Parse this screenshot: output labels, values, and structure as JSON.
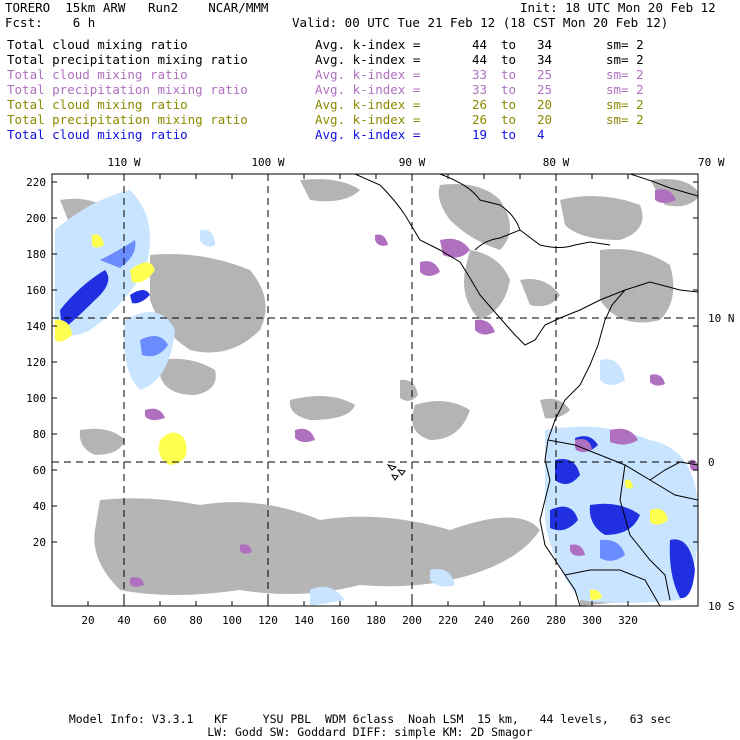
{
  "header": {
    "model": "TORERO  15km ARW   Run2    NCAR/MMM",
    "init": "Init: 18 UTC Mon 20 Feb 12",
    "fcst": "Fcst:    6 h",
    "valid": "Valid: 00 UTC Tue 21 Feb 12 (18 CST Mon 20 Feb 12)"
  },
  "legend": [
    {
      "name": "Total cloud mixing ratio",
      "kidx": "Avg. k-index =",
      "from": "44",
      "to_word": "to",
      "to": "34",
      "sm": "sm= 2",
      "color": "#000000"
    },
    {
      "name": "Total precipitation mixing ratio",
      "kidx": "Avg. k-index =",
      "from": "44",
      "to_word": "to",
      "to": "34",
      "sm": "sm= 2",
      "color": "#000000"
    },
    {
      "name": "Total cloud mixing ratio",
      "kidx": "Avg. k-index =",
      "from": "33",
      "to_word": "to",
      "to": "25",
      "sm": "sm= 2",
      "color": "#b070c0"
    },
    {
      "name": "Total precipitation mixing ratio",
      "kidx": "Avg. k-index =",
      "from": "33",
      "to_word": "to",
      "to": "25",
      "sm": "sm= 2",
      "color": "#b070c0"
    },
    {
      "name": "Total cloud mixing ratio",
      "kidx": "Avg. k-index =",
      "from": "26",
      "to_word": "to",
      "to": "20",
      "sm": "sm= 2",
      "color": "#8a8a00"
    },
    {
      "name": "Total precipitation mixing ratio",
      "kidx": "Avg. k-index =",
      "from": "26",
      "to_word": "to",
      "to": "20",
      "sm": "sm= 2",
      "color": "#8a8a00"
    },
    {
      "name": "Total cloud mixing ratio",
      "kidx": "Avg. k-index =",
      "from": "19",
      "to_word": "to",
      "to": "4",
      "sm": "",
      "color": "#1010e0"
    }
  ],
  "map": {
    "top_lon_labels": [
      "110 W",
      "100 W",
      "90 W",
      "80 W",
      "70 W"
    ],
    "right_lat_labels": [
      "10 N",
      "0",
      "10 S"
    ],
    "x_ticks": [
      "20",
      "40",
      "60",
      "80",
      "100",
      "120",
      "140",
      "160",
      "180",
      "200",
      "220",
      "240",
      "260",
      "280",
      "300",
      "320"
    ],
    "y_ticks": [
      "220",
      "200",
      "180",
      "160",
      "140",
      "120",
      "100",
      "80",
      "60",
      "40",
      "20"
    ],
    "colors": {
      "gray": "#a8a8a8",
      "purple": "#b070c0",
      "yellow": "#ffff50",
      "lightblue": "#c8e4ff",
      "blue": "#2030e0",
      "midblue": "#6a8cff"
    }
  },
  "footer": {
    "line1": "Model Info: V3.3.1   KF     YSU PBL  WDM 6class  Noah LSM  15 km,   44 levels,   63 sec",
    "line2": "LW: Godd SW: Goddard DIFF: simple KM: 2D Smagor"
  }
}
